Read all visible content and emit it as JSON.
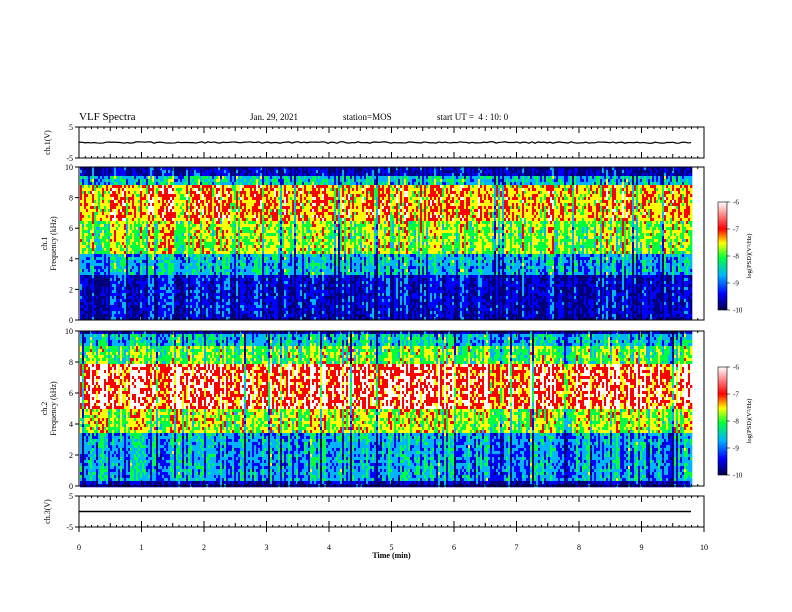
{
  "header": {
    "title": "VLF Spectra",
    "date": "Jan. 29, 2021",
    "station": "station=MOS",
    "start": "start UT =  4 : 10: 0"
  },
  "chart_data": [
    {
      "type": "line",
      "panel": "ch1-waveform",
      "ylabel": "ch.1(V)",
      "ylim": [
        -5,
        5
      ],
      "yticks": [
        5,
        -5
      ],
      "x_range_min": [
        0,
        9.8
      ],
      "trace_level_V": 0
    },
    {
      "type": "heatmap",
      "panel": "ch1-spectrogram",
      "ylabel": "ch.1\nFrequency (kHz)",
      "ylim": [
        0,
        10
      ],
      "yticks": [
        0,
        2,
        4,
        6,
        8,
        10
      ],
      "x_range_min": [
        0,
        9.8
      ],
      "bands": [
        {
          "from_kHz": 0,
          "to_kHz": 0.4,
          "log_psd": -9.6
        },
        {
          "from_kHz": 0.4,
          "to_kHz": 3.0,
          "log_psd": -9.5
        },
        {
          "from_kHz": 3.0,
          "to_kHz": 4.5,
          "log_psd": -8.6
        },
        {
          "from_kHz": 4.5,
          "to_kHz": 6.5,
          "log_psd": -7.6
        },
        {
          "from_kHz": 6.5,
          "to_kHz": 9.0,
          "log_psd": -7.0
        },
        {
          "from_kHz": 9.0,
          "to_kHz": 9.6,
          "log_psd": -8.5
        },
        {
          "from_kHz": 9.6,
          "to_kHz": 10,
          "log_psd": -9.6
        }
      ],
      "colorbar": {
        "label": "log(PSD)(V²/Hz)",
        "ticks": [
          -6,
          -7,
          -8,
          -9,
          -10
        ],
        "range": [
          -10,
          -6
        ]
      }
    },
    {
      "type": "heatmap",
      "panel": "ch2-spectrogram",
      "ylabel": "ch.2\nFrequency (kHz)",
      "ylim": [
        0,
        10
      ],
      "yticks": [
        0,
        2,
        4,
        6,
        8,
        10
      ],
      "x_range_min": [
        0,
        9.8
      ],
      "bands": [
        {
          "from_kHz": 0,
          "to_kHz": 0.4,
          "log_psd": -9.6
        },
        {
          "from_kHz": 0.4,
          "to_kHz": 3.5,
          "log_psd": -8.7
        },
        {
          "from_kHz": 3.5,
          "to_kHz": 5.0,
          "log_psd": -7.5
        },
        {
          "from_kHz": 5.0,
          "to_kHz": 8.0,
          "log_psd": -6.5
        },
        {
          "from_kHz": 8.0,
          "to_kHz": 9.2,
          "log_psd": -7.8
        },
        {
          "from_kHz": 9.2,
          "to_kHz": 10,
          "log_psd": -8.5
        }
      ],
      "colorbar": {
        "label": "log(PSD)(V²/Hz)",
        "ticks": [
          -6,
          -7,
          -8,
          -9,
          -10
        ],
        "range": [
          -10,
          -6
        ]
      }
    },
    {
      "type": "line",
      "panel": "ch3-waveform",
      "ylabel": "ch.3(V)",
      "ylim": [
        -5,
        5
      ],
      "yticks": [
        5,
        -5
      ],
      "x_range_min": [
        0,
        9.8
      ],
      "trace_level_V": 0,
      "xlabel": "Time (min)",
      "xticks": [
        0,
        1,
        2,
        3,
        4,
        5,
        6,
        7,
        8,
        9,
        10
      ],
      "xlim": [
        0,
        10
      ]
    }
  ],
  "colors": {
    "colormap": [
      "#00007a",
      "#0000ff",
      "#00b4ff",
      "#00ff40",
      "#ffff00",
      "#ff0000",
      "#ffffff"
    ]
  }
}
